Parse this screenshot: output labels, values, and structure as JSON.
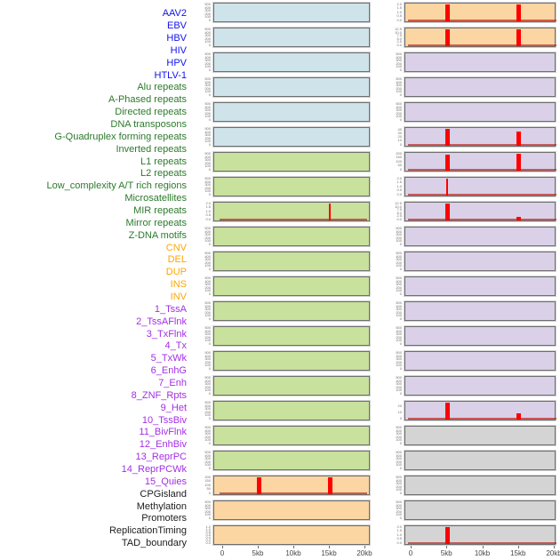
{
  "style": {
    "label_colors": {
      "virus": "#1111ee",
      "repeat": "#2b7a2b",
      "sv": "#ffa500",
      "chromatin": "#a32ee6",
      "other": "#1c1c1c"
    },
    "panel_colors": {
      "virus": "#cfe3eb",
      "repeat": "#c8e19c",
      "sv": "#fbd5a2",
      "chromatin": "#dad0e7",
      "other": "#d4d4d4"
    },
    "spike_color": "#ff0000",
    "baseline_color": "#bb2016",
    "panel_border_color": "#6e6e6e"
  },
  "chart_data": {
    "type": "bar",
    "layout": "44 genomic annotation tracks drawn as 22 mini histogram panels in 2 columns; red spikes mark enrichment at 5kb and 15kb of a 0-20kb window",
    "x": {
      "tick_labels": [
        "0",
        "5kb",
        "10kb",
        "15kb",
        "20kb"
      ],
      "range_kb": [
        0,
        20
      ],
      "tick_kb": [
        0,
        5,
        10,
        15,
        20
      ]
    },
    "y_tick_sets": {
      "c500": {
        "values": [
          "500",
          "400",
          "300",
          "200",
          "100",
          "0"
        ],
        "start": 0
      },
      "c200": {
        "values": [
          "200",
          "150",
          "100",
          "50",
          "0"
        ],
        "start": 0
      },
      "c40": {
        "values": [
          "40",
          "30",
          "20",
          "10",
          "0"
        ],
        "start": 0.05
      },
      "c20": {
        "values": [
          "20",
          "10",
          "0"
        ],
        "start": 0.2
      },
      "r2": {
        "values": [
          "2.0",
          "1.5",
          "1.0",
          "0.5",
          "0.0"
        ],
        "start": 0
      },
      "r12": {
        "values": [
          "12.5",
          "10.0",
          "7.5",
          "5.0",
          "2.5",
          "0.0"
        ],
        "start": 0
      },
      "dense": {
        "values": [
          "1.2",
          "1.0",
          "0.8",
          "0.6",
          "0.4",
          "0.2",
          "0.0"
        ],
        "start": 0
      }
    },
    "tracks": [
      {
        "label": "AAV2",
        "group": "virus",
        "yticks": "c500",
        "baseline": false,
        "peaks": []
      },
      {
        "label": "EBV",
        "group": "virus",
        "yticks": "c500",
        "baseline": false,
        "peaks": []
      },
      {
        "label": "HBV",
        "group": "virus",
        "yticks": "c500",
        "baseline": false,
        "peaks": []
      },
      {
        "label": "HIV",
        "group": "virus",
        "yticks": "c500",
        "baseline": false,
        "peaks": []
      },
      {
        "label": "HPV",
        "group": "virus",
        "yticks": "c500",
        "baseline": false,
        "peaks": []
      },
      {
        "label": "HTLV-1",
        "group": "virus",
        "yticks": "c500",
        "baseline": false,
        "peaks": []
      },
      {
        "label": "Alu repeats",
        "group": "repeat",
        "yticks": "c500",
        "baseline": false,
        "peaks": []
      },
      {
        "label": "A-Phased repeats",
        "group": "repeat",
        "yticks": "c500",
        "baseline": false,
        "peaks": []
      },
      {
        "label": "Directed repeats",
        "group": "repeat",
        "yticks": "r2",
        "baseline": true,
        "peaks": [
          {
            "x_kb": 15,
            "rel_height": 1.0,
            "thin": true
          }
        ]
      },
      {
        "label": "DNA transposons",
        "group": "repeat",
        "yticks": "c500",
        "baseline": false,
        "peaks": []
      },
      {
        "label": "G-Quadruplex forming repeats",
        "group": "repeat",
        "yticks": "c500",
        "baseline": false,
        "peaks": []
      },
      {
        "label": "Inverted repeats",
        "group": "repeat",
        "yticks": "c500",
        "baseline": false,
        "peaks": []
      },
      {
        "label": "L1 repeats",
        "group": "repeat",
        "yticks": "c500",
        "baseline": false,
        "peaks": []
      },
      {
        "label": "L2 repeats",
        "group": "repeat",
        "yticks": "c500",
        "baseline": false,
        "peaks": []
      },
      {
        "label": "Low_complexity A/T rich regions",
        "group": "repeat",
        "yticks": "c500",
        "baseline": false,
        "peaks": []
      },
      {
        "label": "Microsatellites",
        "group": "repeat",
        "yticks": "c500",
        "baseline": false,
        "peaks": []
      },
      {
        "label": "MIR repeats",
        "group": "repeat",
        "yticks": "c500",
        "baseline": false,
        "peaks": []
      },
      {
        "label": "Mirror repeats",
        "group": "repeat",
        "yticks": "c500",
        "baseline": false,
        "peaks": []
      },
      {
        "label": "Z-DNA motifs",
        "group": "repeat",
        "yticks": "c500",
        "baseline": false,
        "peaks": []
      },
      {
        "label": "CNV",
        "group": "sv",
        "yticks": "c200",
        "baseline": true,
        "peaks": [
          {
            "x_kb": 5,
            "rel_height": 1.0,
            "thin": false
          },
          {
            "x_kb": 15,
            "rel_height": 1.0,
            "thin": false
          }
        ]
      },
      {
        "label": "DEL",
        "group": "sv",
        "yticks": "c500",
        "baseline": false,
        "peaks": []
      },
      {
        "label": "DUP",
        "group": "sv",
        "yticks": "dense",
        "baseline": false,
        "peaks": []
      },
      {
        "label": "INS",
        "group": "sv",
        "yticks": "r2",
        "baseline": true,
        "peaks": [
          {
            "x_kb": 5,
            "rel_height": 1.0,
            "thin": false
          },
          {
            "x_kb": 15,
            "rel_height": 0.97,
            "thin": false
          }
        ]
      },
      {
        "label": "INV",
        "group": "sv",
        "yticks": "r12",
        "baseline": true,
        "peaks": [
          {
            "x_kb": 5,
            "rel_height": 1.0,
            "thin": false
          },
          {
            "x_kb": 15,
            "rel_height": 1.0,
            "thin": false
          }
        ]
      },
      {
        "label": "1_TssA",
        "group": "chromatin",
        "yticks": "c500",
        "baseline": false,
        "peaks": []
      },
      {
        "label": "2_TssAFlnk",
        "group": "chromatin",
        "yticks": "c500",
        "baseline": false,
        "peaks": []
      },
      {
        "label": "3_TxFlnk",
        "group": "chromatin",
        "yticks": "c500",
        "baseline": false,
        "peaks": []
      },
      {
        "label": "4_Tx",
        "group": "chromatin",
        "yticks": "c40",
        "baseline": true,
        "peaks": [
          {
            "x_kb": 5,
            "rel_height": 1.0,
            "thin": false
          },
          {
            "x_kb": 15,
            "rel_height": 0.8,
            "thin": false
          }
        ]
      },
      {
        "label": "5_TxWk",
        "group": "chromatin",
        "yticks": "c200",
        "baseline": true,
        "peaks": [
          {
            "x_kb": 5,
            "rel_height": 0.93,
            "thin": false
          },
          {
            "x_kb": 15,
            "rel_height": 1.0,
            "thin": false
          }
        ]
      },
      {
        "label": "6_EnhG",
        "group": "chromatin",
        "yticks": "r2",
        "baseline": true,
        "peaks": [
          {
            "x_kb": 5,
            "rel_height": 1.0,
            "thin": true
          }
        ]
      },
      {
        "label": "7_Enh",
        "group": "chromatin",
        "yticks": "r12",
        "baseline": true,
        "peaks": [
          {
            "x_kb": 5,
            "rel_height": 0.97,
            "thin": false
          },
          {
            "x_kb": 15,
            "rel_height": 0.18,
            "thin": false
          }
        ]
      },
      {
        "label": "8_ZNF_Rpts",
        "group": "chromatin",
        "yticks": "c500",
        "baseline": false,
        "peaks": []
      },
      {
        "label": "9_Het",
        "group": "chromatin",
        "yticks": "c500",
        "baseline": false,
        "peaks": []
      },
      {
        "label": "10_TssBiv",
        "group": "chromatin",
        "yticks": "c500",
        "baseline": false,
        "peaks": []
      },
      {
        "label": "11_BivFlnk",
        "group": "chromatin",
        "yticks": "c500",
        "baseline": false,
        "peaks": []
      },
      {
        "label": "12_EnhBiv",
        "group": "chromatin",
        "yticks": "c500",
        "baseline": false,
        "peaks": []
      },
      {
        "label": "13_ReprPC",
        "group": "chromatin",
        "yticks": "c500",
        "baseline": false,
        "peaks": []
      },
      {
        "label": "14_ReprPCWk",
        "group": "chromatin",
        "yticks": "c500",
        "baseline": false,
        "peaks": []
      },
      {
        "label": "15_Quies",
        "group": "chromatin",
        "yticks": "c20",
        "baseline": true,
        "peaks": [
          {
            "x_kb": 5,
            "rel_height": 1.0,
            "thin": false
          },
          {
            "x_kb": 15,
            "rel_height": 0.33,
            "thin": false
          }
        ]
      },
      {
        "label": "CPGisland",
        "group": "other",
        "yticks": "c500",
        "baseline": false,
        "peaks": []
      },
      {
        "label": "Methylation",
        "group": "other",
        "yticks": "c500",
        "baseline": false,
        "peaks": []
      },
      {
        "label": "Promoters",
        "group": "other",
        "yticks": "c500",
        "baseline": false,
        "peaks": []
      },
      {
        "label": "ReplicationTiming",
        "group": "other",
        "yticks": "c500",
        "baseline": false,
        "peaks": []
      },
      {
        "label": "TAD_boundary",
        "group": "other",
        "yticks": "r2",
        "baseline": true,
        "peaks": [
          {
            "x_kb": 5,
            "rel_height": 1.0,
            "thin": false
          }
        ]
      }
    ]
  }
}
